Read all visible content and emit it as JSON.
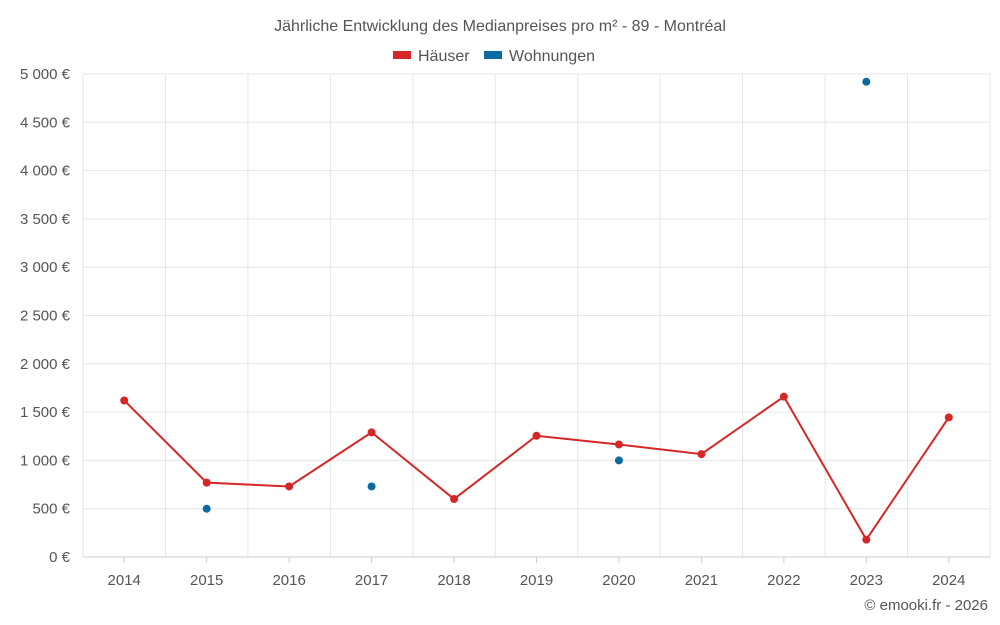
{
  "chart_data": {
    "type": "line",
    "title": "Jährliche Entwicklung des Medianpreises pro m² - 89 - Montréal",
    "categories": [
      "2014",
      "2015",
      "2016",
      "2017",
      "2018",
      "2019",
      "2020",
      "2021",
      "2022",
      "2023",
      "2024"
    ],
    "ylim": [
      0,
      5000
    ],
    "yticks": [
      0,
      500,
      1000,
      1500,
      2000,
      2500,
      3000,
      3500,
      4000,
      4500,
      5000
    ],
    "ytick_labels": [
      "0 €",
      "500 €",
      "1 000 €",
      "1 500 €",
      "2 000 €",
      "2 500 €",
      "3 000 €",
      "3 500 €",
      "4 000 €",
      "4 500 €",
      "5 000 €"
    ],
    "legend_position": "top-center",
    "grid": true,
    "series": [
      {
        "name": "Häuser",
        "color": "#d62728",
        "style": "line",
        "values": [
          1620,
          770,
          730,
          1290,
          600,
          1255,
          1165,
          1065,
          1660,
          180,
          1445
        ]
      },
      {
        "name": "Wohnungen",
        "color": "#0b6aa2",
        "style": "points",
        "values": [
          null,
          500,
          null,
          730,
          null,
          null,
          1000,
          null,
          null,
          4920,
          null
        ]
      }
    ]
  },
  "footer": "© emooki.fr - 2026"
}
